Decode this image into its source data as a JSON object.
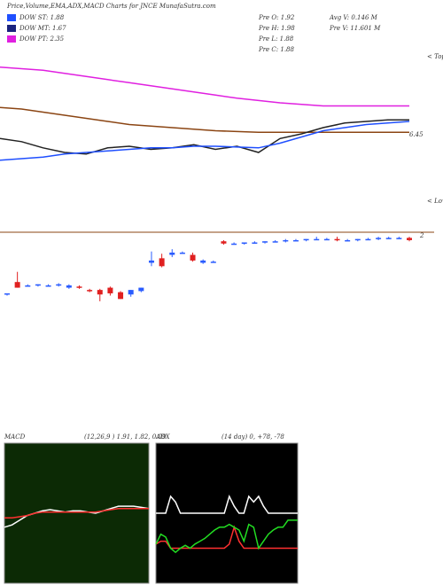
{
  "title": "Price,Volume,EMA,ADX,MACD Charts for JNCE MunafaSutra.com",
  "legend": [
    {
      "label": "DOW ST: 1.88",
      "color": "#1f4fff"
    },
    {
      "label": "DOW MT: 1.67",
      "color": "#1a237e"
    },
    {
      "label": "DOW PT: 2.35",
      "color": "#e020e0"
    }
  ],
  "stats": [
    [
      "Pre  O: 1.92",
      "Avg V: 0.146  M"
    ],
    [
      "Pre  H: 1.98",
      "Pre  V: 11.601 M"
    ],
    [
      "Pre  L: 1.88"
    ],
    [
      "Pre  C: 1.88"
    ]
  ],
  "chart_data": [
    {
      "type": "line",
      "annotations": [
        "6.45",
        "< Tops",
        "< Lows"
      ],
      "ylim": [
        0,
        10
      ],
      "series": [
        {
          "color": "#e020e0",
          "values": [
            9.1,
            9.0,
            8.9,
            8.7,
            8.5,
            8.3,
            8.1,
            7.9,
            7.7,
            7.5,
            7.3,
            7.1,
            6.95,
            6.8,
            6.7,
            6.6,
            6.6,
            6.6,
            6.6,
            6.6
          ]
        },
        {
          "color": "#8b4513",
          "values": [
            6.5,
            6.4,
            6.2,
            6.0,
            5.8,
            5.6,
            5.4,
            5.3,
            5.2,
            5.1,
            5.0,
            4.95,
            4.9,
            4.9,
            4.9,
            4.9,
            4.9,
            4.9,
            4.9,
            4.9
          ]
        },
        {
          "color": "#222222",
          "values": [
            4.5,
            4.3,
            3.9,
            3.6,
            3.5,
            3.9,
            4.0,
            3.8,
            3.9,
            4.1,
            3.8,
            4.0,
            3.6,
            4.5,
            4.8,
            5.2,
            5.5,
            5.6,
            5.7,
            5.7
          ]
        },
        {
          "color": "#1f4fff",
          "values": [
            3.1,
            3.2,
            3.3,
            3.5,
            3.6,
            3.7,
            3.8,
            3.9,
            3.9,
            4.0,
            4.0,
            3.95,
            3.9,
            4.2,
            4.6,
            5.0,
            5.2,
            5.4,
            5.5,
            5.6
          ]
        }
      ]
    },
    {
      "type": "candlestick",
      "annotations": [
        "2"
      ],
      "ylim": [
        1.4,
        2.05
      ],
      "up_color": "#2a5cff",
      "down_color": "#e02020",
      "open": [
        1.5,
        1.61,
        1.58,
        1.58,
        1.58,
        1.58,
        1.56,
        1.57,
        1.54,
        1.54,
        1.56,
        1.52,
        1.5,
        1.53,
        1.78,
        1.82,
        1.85,
        1.87,
        1.85,
        1.78,
        1.79,
        1.97,
        1.95,
        1.95,
        1.96,
        1.96,
        1.97,
        1.97,
        1.98,
        1.98,
        1.99,
        1.99,
        1.99,
        1.98,
        1.98,
        1.99,
        1.99,
        2.0,
        2.0,
        2.0
      ],
      "high": [
        1.51,
        1.7,
        1.59,
        1.59,
        1.59,
        1.6,
        1.59,
        1.58,
        1.55,
        1.55,
        1.57,
        1.53,
        1.54,
        1.56,
        1.88,
        1.86,
        1.9,
        1.88,
        1.87,
        1.81,
        1.8,
        1.98,
        1.96,
        1.96,
        1.97,
        1.97,
        1.98,
        1.99,
        1.99,
        1.99,
        2.01,
        2.0,
        2.01,
        1.99,
        1.99,
        2.0,
        2.01,
        2.01,
        2.01,
        2.01
      ],
      "low": [
        1.49,
        1.56,
        1.57,
        1.57,
        1.57,
        1.57,
        1.55,
        1.55,
        1.52,
        1.44,
        1.49,
        1.46,
        1.48,
        1.52,
        1.75,
        1.74,
        1.83,
        1.86,
        1.79,
        1.77,
        1.78,
        1.94,
        1.94,
        1.94,
        1.95,
        1.95,
        1.96,
        1.96,
        1.97,
        1.97,
        1.98,
        1.98,
        1.97,
        1.97,
        1.97,
        1.98,
        1.98,
        1.99,
        1.99,
        1.97
      ],
      "close": [
        1.51,
        1.56,
        1.58,
        1.59,
        1.58,
        1.59,
        1.58,
        1.56,
        1.53,
        1.5,
        1.51,
        1.46,
        1.54,
        1.56,
        1.8,
        1.75,
        1.87,
        1.87,
        1.8,
        1.8,
        1.79,
        1.95,
        1.95,
        1.96,
        1.96,
        1.97,
        1.97,
        1.98,
        1.98,
        1.99,
        1.99,
        1.99,
        1.98,
        1.98,
        1.99,
        1.99,
        2.0,
        2.0,
        2.0,
        1.98
      ]
    },
    {
      "type": "line",
      "title": "MACD",
      "subtitle": "(12,26,9 ) 1.91, 1.82, 0.09",
      "ylim": [
        -3,
        3
      ],
      "series": [
        {
          "color": "#ffffff",
          "values": [
            -0.6,
            -0.5,
            -0.3,
            -0.1,
            0,
            0.1,
            0.15,
            0.1,
            0.05,
            0.1,
            0.1,
            0.05,
            0,
            0.1,
            0.2,
            0.3,
            0.3,
            0.3,
            0.25,
            0.2
          ]
        },
        {
          "color": "#ff3030",
          "values": [
            -0.2,
            -0.2,
            -0.15,
            -0.1,
            0,
            0.05,
            0.05,
            0.05,
            0.05,
            0.05,
            0.05,
            0.05,
            0.05,
            0.1,
            0.15,
            0.2,
            0.2,
            0.2,
            0.2,
            0.2
          ]
        }
      ]
    },
    {
      "type": "line",
      "title": "ADX",
      "subtitle": "(14 day) 0, +78, -78",
      "ylim": [
        0,
        100
      ],
      "series": [
        {
          "color": "#ffffff",
          "values": [
            50,
            50,
            50,
            62,
            58,
            50,
            50,
            50,
            50,
            50,
            50,
            50,
            50,
            50,
            50,
            62,
            55,
            50,
            50,
            62,
            58,
            62,
            55,
            50,
            50,
            50,
            50,
            50,
            50,
            50
          ]
        },
        {
          "color": "#ff3030",
          "values": [
            28,
            30,
            30,
            25,
            25,
            25,
            25,
            25,
            25,
            25,
            25,
            25,
            25,
            25,
            25,
            28,
            40,
            30,
            25,
            25,
            25,
            25,
            25,
            25,
            25,
            25,
            25,
            25,
            25,
            25
          ]
        },
        {
          "color": "#22dd22",
          "values": [
            28,
            35,
            33,
            25,
            22,
            25,
            27,
            25,
            28,
            30,
            32,
            35,
            38,
            40,
            40,
            42,
            40,
            38,
            30,
            42,
            40,
            25,
            30,
            35,
            38,
            40,
            40,
            45,
            45,
            45
          ]
        }
      ]
    }
  ]
}
